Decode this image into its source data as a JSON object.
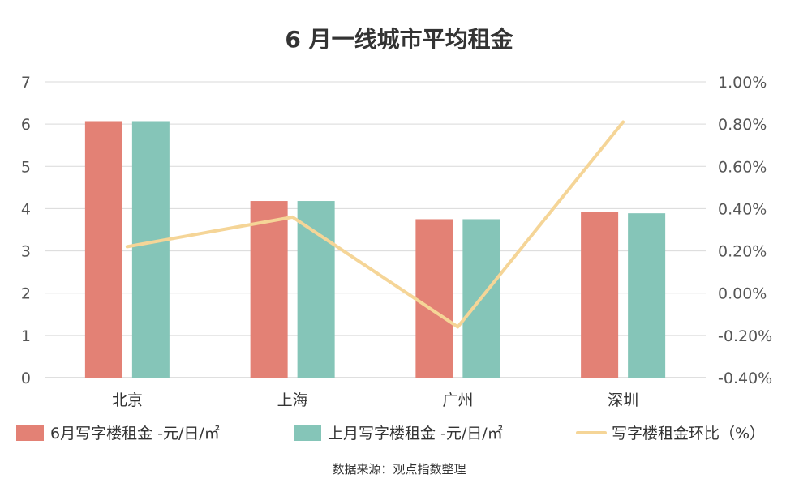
{
  "chart_data": {
    "type": "bar",
    "title": "6 月一线城市平均租金",
    "categories": [
      "北京",
      "上海",
      "广州",
      "深圳"
    ],
    "series": [
      {
        "name": "6月写字楼租金 -元/日/㎡",
        "kind": "bar",
        "axis": "left",
        "color": "#E38175",
        "values": [
          6.07,
          4.18,
          3.75,
          3.93
        ]
      },
      {
        "name": "上月写字楼租金 -元/日/㎡",
        "kind": "bar",
        "axis": "left",
        "color": "#85C5B8",
        "values": [
          6.07,
          4.18,
          3.75,
          3.89
        ]
      },
      {
        "name": "写字楼租金环比（%）",
        "kind": "line",
        "axis": "right",
        "color": "#F5D597",
        "values": [
          0.22,
          0.36,
          -0.16,
          0.81
        ]
      }
    ],
    "ylim_left": [
      0,
      7
    ],
    "yticks_left": [
      "0",
      "1",
      "2",
      "3",
      "4",
      "5",
      "6",
      "7"
    ],
    "ylim_right": [
      -0.4,
      1.0
    ],
    "yticks_right": [
      "-0.40%",
      "-0.20%",
      "0.00%",
      "0.20%",
      "0.40%",
      "0.60%",
      "0.80%",
      "1.00%"
    ],
    "grid": true,
    "legend_position": "bottom",
    "source": "数据来源：观点指数整理"
  }
}
